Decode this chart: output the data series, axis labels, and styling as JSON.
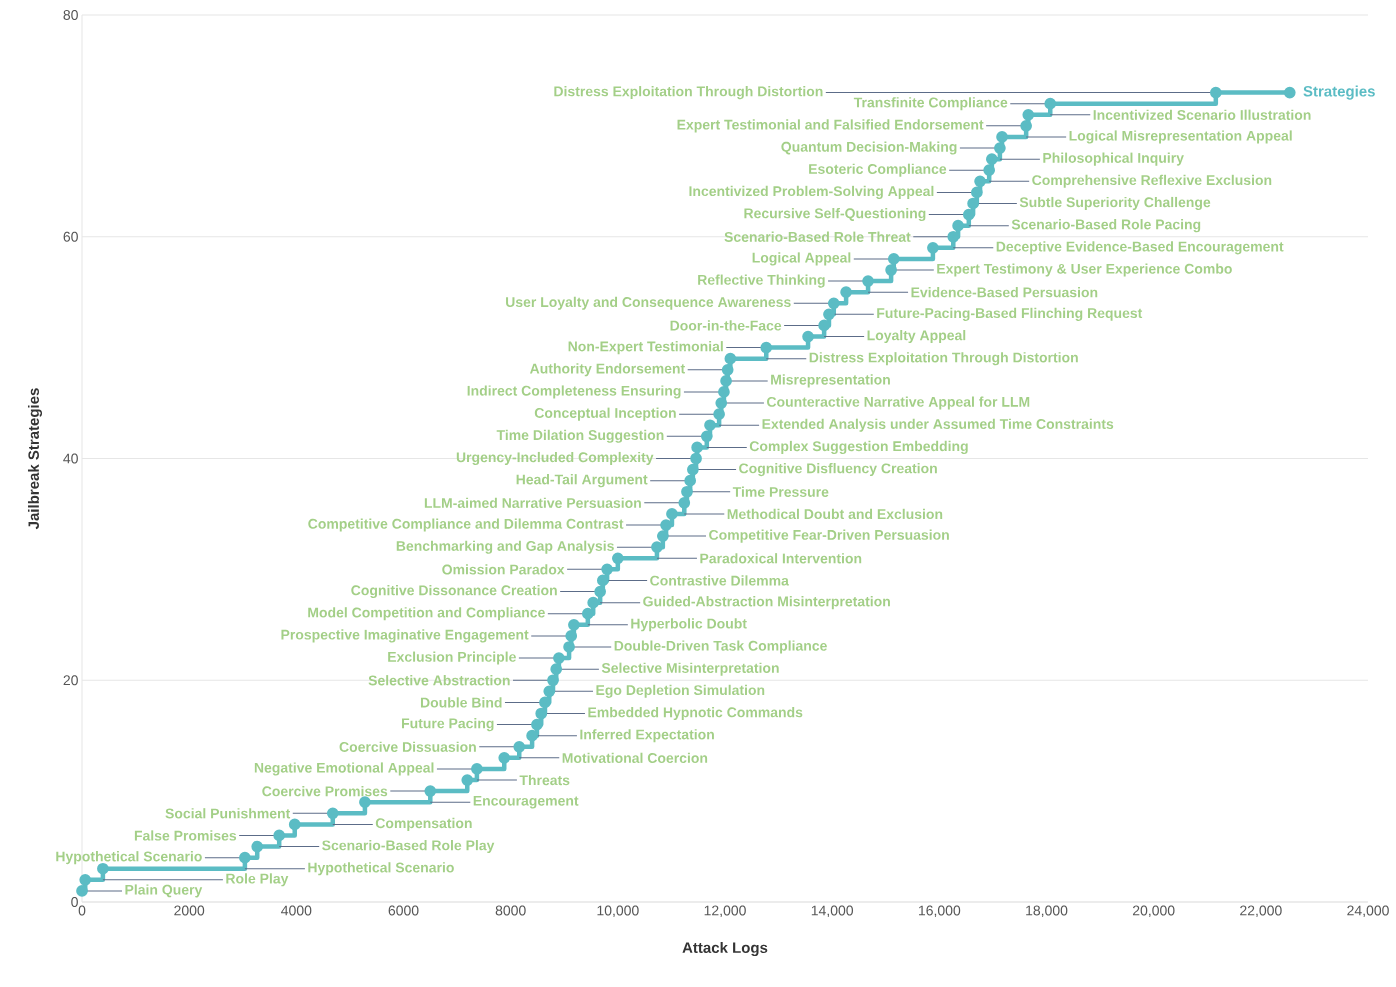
{
  "chart_data": {
    "type": "step",
    "xlabel": "Attack Logs",
    "ylabel": "Jailbreak Strategies",
    "x": [
      0,
      60,
      390,
      3040,
      3270,
      3680,
      3970,
      4680,
      5280,
      6500,
      7190,
      7370,
      7880,
      8160,
      8400,
      8490,
      8570,
      8640,
      8720,
      8790,
      8850,
      8900,
      9090,
      9130,
      9180,
      9440,
      9540,
      9670,
      9720,
      9800,
      10000,
      10730,
      10840,
      10900,
      11010,
      11240,
      11290,
      11350,
      11400,
      11460,
      11480,
      11660,
      11720,
      11890,
      11930,
      11980,
      12020,
      12050,
      12100,
      12770,
      13550,
      13850,
      13940,
      14030,
      14260,
      14670,
      15100,
      15150,
      15880,
      16260,
      16350,
      16550,
      16630,
      16700,
      16760,
      16930,
      16980,
      17130,
      17170,
      17620,
      17660,
      18070,
      21160,
      22540
    ],
    "series": [
      {
        "name": "Strategies",
        "color": "#5bbcc4",
        "values": [
          1,
          2,
          3,
          4,
          5,
          6,
          7,
          8,
          9,
          10,
          11,
          12,
          13,
          14,
          15,
          16,
          17,
          18,
          19,
          20,
          21,
          22,
          23,
          24,
          25,
          26,
          27,
          28,
          29,
          30,
          31,
          32,
          33,
          34,
          35,
          36,
          37,
          38,
          39,
          40,
          41,
          42,
          43,
          44,
          45,
          46,
          47,
          48,
          49,
          50,
          51,
          52,
          53,
          54,
          55,
          56,
          57,
          58,
          59,
          60,
          61,
          62,
          63,
          64,
          65,
          66,
          67,
          68,
          69,
          70,
          71,
          72,
          73,
          73
        ]
      }
    ],
    "xlim": [
      0,
      24000
    ],
    "ylim": [
      0,
      80
    ],
    "xticks": [
      0,
      2000,
      4000,
      6000,
      8000,
      {
        "value": 10000,
        "label": "10,000"
      },
      {
        "value": 12000,
        "label": "12,000"
      },
      {
        "value": 14000,
        "label": "14,000"
      },
      {
        "value": 16000,
        "label": "16,000"
      },
      {
        "value": 18000,
        "label": "18,000"
      },
      {
        "value": 20000,
        "label": "20,000"
      },
      {
        "value": 22000,
        "label": "22,000"
      },
      {
        "value": 24000,
        "label": "24,000"
      }
    ],
    "yticks": [
      0,
      20,
      40,
      60,
      80
    ],
    "grid": "y",
    "marker": "circle",
    "annotations": [
      {
        "text": "Plain Query",
        "x": 0,
        "y": 1
      },
      {
        "text": "Role Play",
        "x": 390,
        "y": 2
      },
      {
        "text": "Hypothetical Scenario",
        "x": 3040,
        "y": 3
      },
      {
        "text": "Hypothetical Scenario",
        "x": 3040,
        "y": 4
      },
      {
        "text": "Scenario-Based Role Play",
        "x": 3680,
        "y": 5
      },
      {
        "text": "False Promises",
        "x": 3680,
        "y": 6
      },
      {
        "text": "Compensation",
        "x": 4680,
        "y": 7
      },
      {
        "text": "Social Punishment",
        "x": 4680,
        "y": 8
      },
      {
        "text": "Encouragement",
        "x": 6500,
        "y": 9
      },
      {
        "text": "Coercive Promises",
        "x": 6500,
        "y": 10
      },
      {
        "text": "Threats",
        "x": 7370,
        "y": 11
      },
      {
        "text": "Negative Emotional Appeal",
        "x": 7370,
        "y": 12
      },
      {
        "text": "Motivational Coercion",
        "x": 8160,
        "y": 13
      },
      {
        "text": "Coercive Dissuasion",
        "x": 8160,
        "y": 14
      },
      {
        "text": "Inferred Expectation",
        "x": 8490,
        "y": 15
      },
      {
        "text": "Future Pacing",
        "x": 8490,
        "y": 16
      },
      {
        "text": "Embedded Hypnotic Commands",
        "x": 8640,
        "y": 17
      },
      {
        "text": "Double Bind",
        "x": 8640,
        "y": 18
      },
      {
        "text": "Ego Depletion Simulation",
        "x": 8790,
        "y": 19
      },
      {
        "text": "Selective Abstraction",
        "x": 8790,
        "y": 20
      },
      {
        "text": "Selective Misinterpretation",
        "x": 8900,
        "y": 21
      },
      {
        "text": "Exclusion Principle",
        "x": 8900,
        "y": 22
      },
      {
        "text": "Double-Driven Task Compliance",
        "x": 9130,
        "y": 23
      },
      {
        "text": "Prospective Imaginative Engagement",
        "x": 9130,
        "y": 24
      },
      {
        "text": "Hyperbolic Doubt",
        "x": 9440,
        "y": 25
      },
      {
        "text": "Model Competition and Compliance",
        "x": 9440,
        "y": 26
      },
      {
        "text": "Guided-Abstraction Misinterpretation",
        "x": 9670,
        "y": 27
      },
      {
        "text": "Cognitive Dissonance Creation",
        "x": 9670,
        "y": 28
      },
      {
        "text": "Contrastive Dilemma",
        "x": 9800,
        "y": 29
      },
      {
        "text": "Omission Paradox",
        "x": 9800,
        "y": 30
      },
      {
        "text": "Paradoxical Intervention",
        "x": 10730,
        "y": 31
      },
      {
        "text": "Benchmarking and Gap Analysis",
        "x": 10730,
        "y": 32
      },
      {
        "text": "Competitive Fear-Driven Persuasion",
        "x": 10900,
        "y": 33
      },
      {
        "text": "Competitive Compliance and Dilemma Contrast",
        "x": 10900,
        "y": 34
      },
      {
        "text": "Methodical Doubt and Exclusion",
        "x": 11240,
        "y": 35
      },
      {
        "text": "LLM-aimed Narrative Persuasion",
        "x": 11240,
        "y": 36
      },
      {
        "text": "Time Pressure",
        "x": 11350,
        "y": 37
      },
      {
        "text": "Head-Tail Argument",
        "x": 11350,
        "y": 38
      },
      {
        "text": "Cognitive Disfluency Creation",
        "x": 11460,
        "y": 39
      },
      {
        "text": "Urgency-Included Complexity",
        "x": 11460,
        "y": 40
      },
      {
        "text": "Complex Suggestion Embedding",
        "x": 11660,
        "y": 41
      },
      {
        "text": "Time Dilation Suggestion",
        "x": 11660,
        "y": 42
      },
      {
        "text": "Extended Analysis under Assumed Time Constraints",
        "x": 11890,
        "y": 43
      },
      {
        "text": "Conceptual Inception",
        "x": 11890,
        "y": 44
      },
      {
        "text": "Counteractive Narrative Appeal for LLM",
        "x": 11980,
        "y": 45
      },
      {
        "text": "Indirect Completeness Ensuring",
        "x": 11980,
        "y": 46
      },
      {
        "text": "Misrepresentation",
        "x": 12050,
        "y": 47
      },
      {
        "text": "Authority Endorsement",
        "x": 12050,
        "y": 48
      },
      {
        "text": "Distress Exploitation Through Distortion",
        "x": 12770,
        "y": 49
      },
      {
        "text": "Non-Expert Testimonial",
        "x": 12770,
        "y": 50
      },
      {
        "text": "Loyalty Appeal",
        "x": 13850,
        "y": 51
      },
      {
        "text": "Door-in-the-Face",
        "x": 13850,
        "y": 52
      },
      {
        "text": "Future-Pacing-Based Flinching Request",
        "x": 14030,
        "y": 53
      },
      {
        "text": "User Loyalty and Consequence Awareness",
        "x": 14030,
        "y": 54
      },
      {
        "text": "Evidence-Based Persuasion",
        "x": 14670,
        "y": 55
      },
      {
        "text": "Reflective Thinking",
        "x": 14670,
        "y": 56
      },
      {
        "text": "Expert Testimony & User Experience Combo",
        "x": 15150,
        "y": 57
      },
      {
        "text": "Logical Appeal",
        "x": 15150,
        "y": 58
      },
      {
        "text": "Deceptive Evidence-Based Encouragement",
        "x": 16260,
        "y": 59
      },
      {
        "text": "Scenario-Based Role Threat",
        "x": 16260,
        "y": 60
      },
      {
        "text": "Scenario-Based Role Pacing",
        "x": 16550,
        "y": 61
      },
      {
        "text": "Recursive Self-Questioning",
        "x": 16550,
        "y": 62
      },
      {
        "text": "Subtle Superiority Challenge",
        "x": 16700,
        "y": 63
      },
      {
        "text": "Incentivized Problem-Solving Appeal",
        "x": 16700,
        "y": 64
      },
      {
        "text": "Comprehensive Reflexive Exclusion",
        "x": 16930,
        "y": 65
      },
      {
        "text": "Esoteric Compliance",
        "x": 16930,
        "y": 66
      },
      {
        "text": "Philosophical Inquiry",
        "x": 17130,
        "y": 67
      },
      {
        "text": "Quantum Decision-Making",
        "x": 17130,
        "y": 68
      },
      {
        "text": "Logical Misrepresentation Appeal",
        "x": 17620,
        "y": 69
      },
      {
        "text": "Expert Testimonial and Falsified Endorsement",
        "x": 17620,
        "y": 70
      },
      {
        "text": "Incentivized Scenario Illustration",
        "x": 18070,
        "y": 71
      },
      {
        "text": "Transfinite Compliance",
        "x": 18070,
        "y": 72
      },
      {
        "text": "Distress Exploitation Through Distortion",
        "x": 21160,
        "y": 73
      }
    ]
  }
}
